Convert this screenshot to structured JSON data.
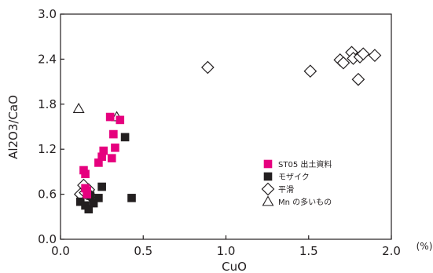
{
  "chart_data": {
    "type": "scatter",
    "title": "",
    "xlabel": "CuO",
    "x_unit": "(%)",
    "ylabel": "Al2O3/CaO",
    "xlim": [
      0,
      2.0
    ],
    "ylim": [
      0,
      3.0
    ],
    "x_ticks": [
      "0.0",
      "0.5",
      "1.0",
      "1.5",
      "2.0"
    ],
    "y_ticks": [
      "0.0",
      "0.6",
      "1.2",
      "1.8",
      "2.4",
      "3.0"
    ],
    "grid": false,
    "legend_position": "right-middle",
    "series": [
      {
        "name": "ST05 出土資料",
        "marker": "square-filled",
        "color": "#e6007e",
        "points": [
          [
            0.14,
            0.92
          ],
          [
            0.15,
            0.87
          ],
          [
            0.15,
            0.68
          ],
          [
            0.16,
            0.65
          ],
          [
            0.16,
            0.6
          ],
          [
            0.23,
            1.02
          ],
          [
            0.25,
            1.1
          ],
          [
            0.26,
            1.18
          ],
          [
            0.3,
            1.63
          ],
          [
            0.31,
            1.08
          ],
          [
            0.32,
            1.4
          ],
          [
            0.33,
            1.22
          ],
          [
            0.36,
            1.59
          ]
        ]
      },
      {
        "name": "モザイク",
        "marker": "square-filled",
        "color": "#231f20",
        "points": [
          [
            0.12,
            0.5
          ],
          [
            0.15,
            0.45
          ],
          [
            0.17,
            0.4
          ],
          [
            0.18,
            0.58
          ],
          [
            0.2,
            0.48
          ],
          [
            0.23,
            0.55
          ],
          [
            0.25,
            0.7
          ],
          [
            0.39,
            1.36
          ],
          [
            0.43,
            0.55
          ]
        ]
      },
      {
        "name": "平滑",
        "marker": "diamond-open",
        "color": "#231f20",
        "points": [
          [
            0.12,
            0.6
          ],
          [
            0.14,
            0.72
          ],
          [
            0.15,
            0.62
          ],
          [
            0.17,
            0.66
          ],
          [
            0.18,
            0.58
          ],
          [
            0.89,
            2.29
          ],
          [
            1.51,
            2.24
          ],
          [
            1.69,
            2.39
          ],
          [
            1.71,
            2.35
          ],
          [
            1.76,
            2.49
          ],
          [
            1.77,
            2.41
          ],
          [
            1.8,
            2.13
          ],
          [
            1.81,
            2.43
          ],
          [
            1.83,
            2.47
          ],
          [
            1.9,
            2.45
          ]
        ]
      },
      {
        "name": "Mn の多いもの",
        "marker": "triangle-open",
        "color": "#231f20",
        "points": [
          [
            0.11,
            1.74
          ],
          [
            0.15,
            0.55
          ],
          [
            0.34,
            1.63
          ]
        ]
      }
    ]
  }
}
